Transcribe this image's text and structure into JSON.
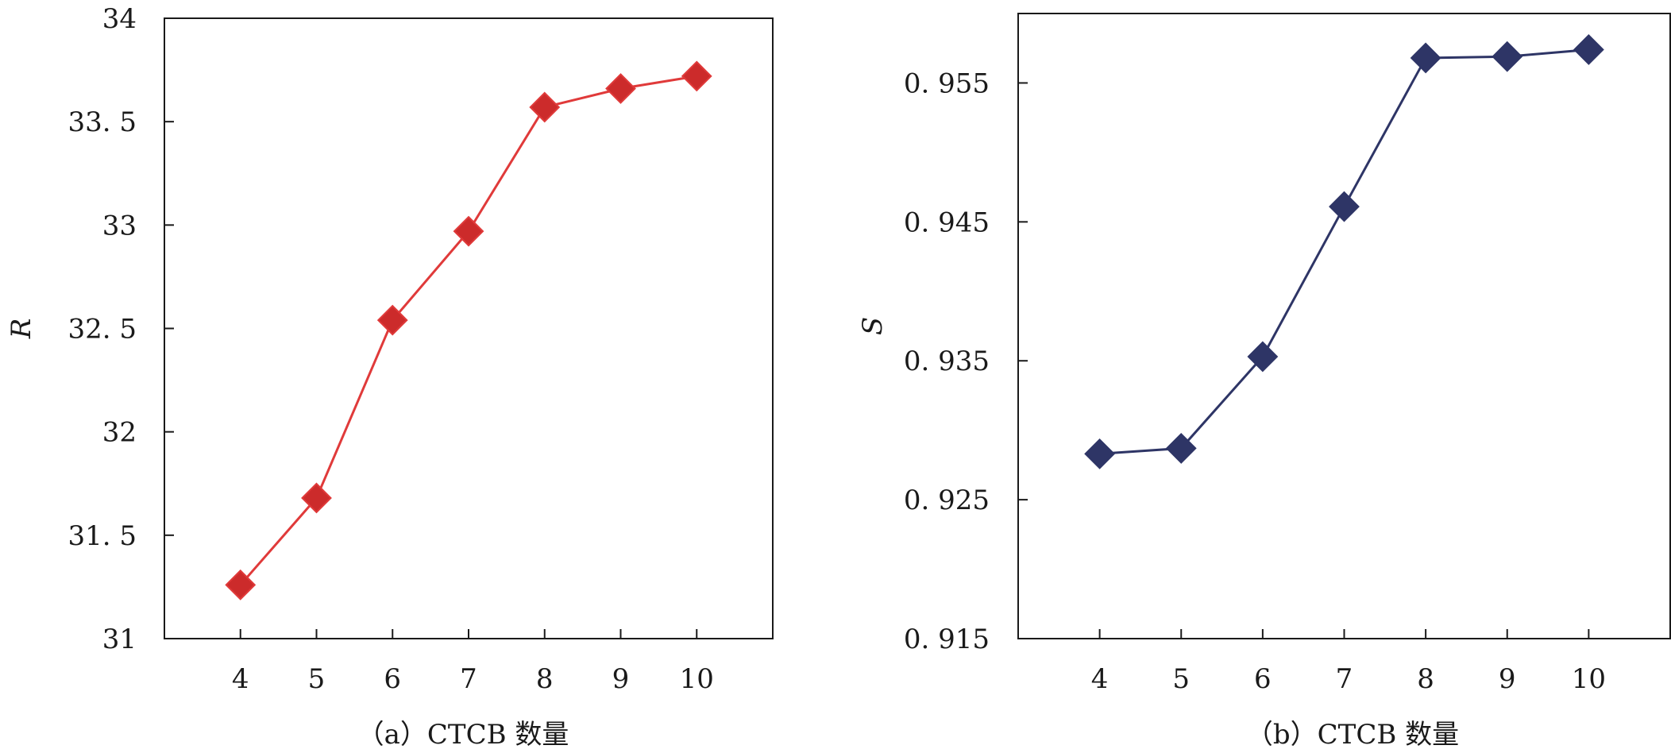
{
  "chart_data": [
    {
      "type": "line",
      "caption": "（a）CTCB 数量",
      "ylabel": "R",
      "categories": [
        "4",
        "5",
        "6",
        "7",
        "8",
        "9",
        "10"
      ],
      "x": [
        4,
        5,
        6,
        7,
        8,
        9,
        10
      ],
      "values": [
        31.26,
        31.68,
        32.54,
        32.97,
        33.57,
        33.66,
        33.72
      ],
      "ylim": [
        31,
        34
      ],
      "yticks": [
        "31",
        "31.5",
        "32",
        "32.5",
        "33",
        "33.5",
        "34"
      ],
      "marker": "diamond",
      "color": "#e03a3a",
      "marker_fill": "#cc2b2b",
      "grid": false
    },
    {
      "type": "line",
      "caption": "（b）CTCB 数量",
      "ylabel": "S",
      "categories": [
        "4",
        "5",
        "6",
        "7",
        "8",
        "9",
        "10"
      ],
      "x": [
        4,
        5,
        6,
        7,
        8,
        9,
        10
      ],
      "values": [
        0.9283,
        0.9287,
        0.9353,
        0.9461,
        0.9568,
        0.9569,
        0.9574
      ],
      "ylim": [
        0.915,
        0.96
      ],
      "yticks": [
        "0.915",
        "0.925",
        "0.935",
        "0.945",
        "0.955"
      ],
      "marker": "diamond",
      "color": "#2e3566",
      "marker_fill": "#2e3566",
      "grid": false
    }
  ]
}
